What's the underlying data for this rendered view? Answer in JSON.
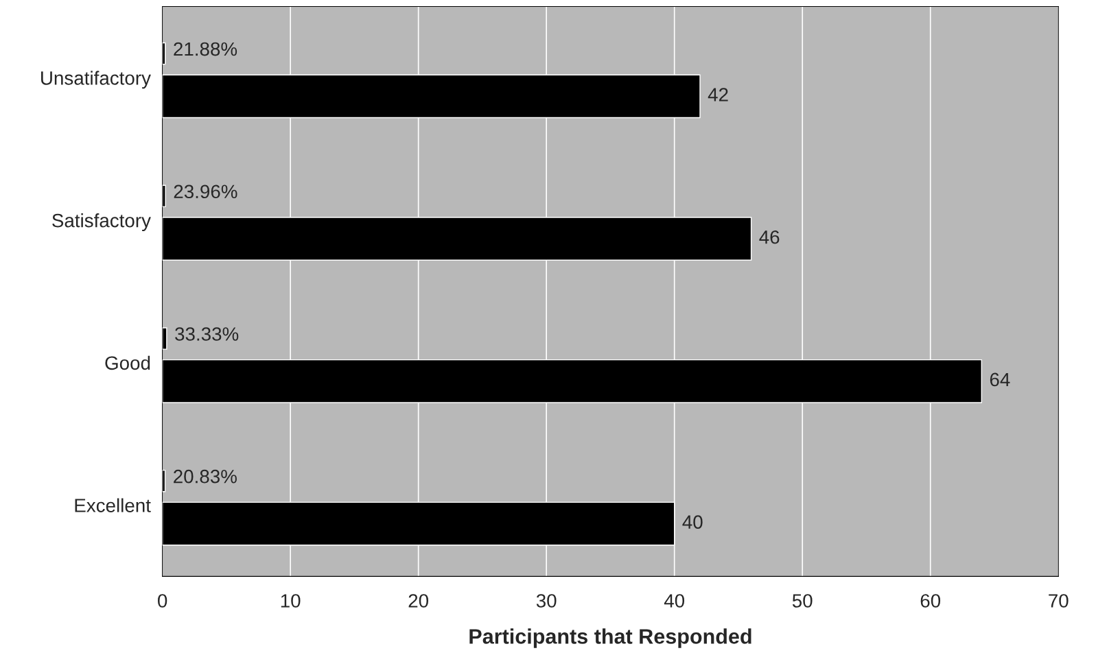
{
  "chart_data": {
    "type": "bar",
    "orientation": "horizontal",
    "xlabel": "Participants that Responded",
    "categories": [
      "Unsatifactory",
      "Satisfactory",
      "Good",
      "Excellent"
    ],
    "series": [
      {
        "color": "#000000",
        "values": [
          0.2188,
          0.2396,
          0.3333,
          0.2083
        ],
        "value_labels": [
          "21.88%",
          "23.96%",
          "33.33%",
          "20.83%"
        ]
      },
      {
        "color": "#000000",
        "values": [
          42,
          46,
          64,
          40
        ],
        "value_labels": [
          "42",
          "46",
          "64",
          "40"
        ]
      }
    ],
    "xlim": [
      0,
      70
    ],
    "xticks": [
      0,
      10,
      20,
      30,
      40,
      50,
      60,
      70
    ],
    "grid": "x"
  }
}
